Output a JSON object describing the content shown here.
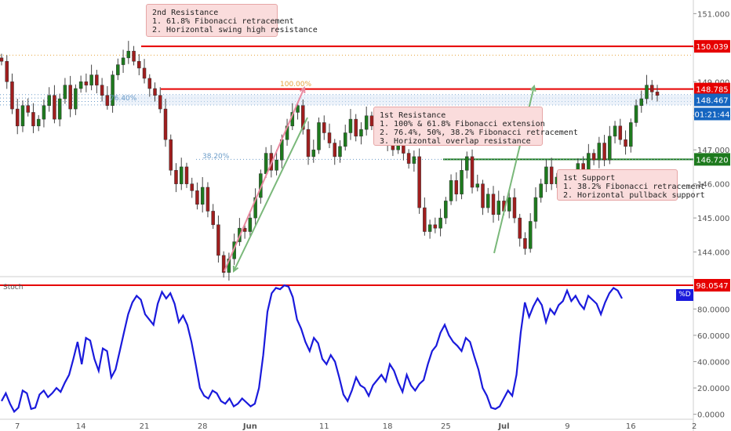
{
  "colors": {
    "resistance": "#e60000",
    "support": "#1e7a1e",
    "candle_up": "#1e7a1e",
    "candle_down": "#a01e1e",
    "stoch_line": "#1a1adc",
    "fib_line": "#6a9bc8",
    "orange_line": "#e6a23c",
    "axis_badge_blue": "#1565c0",
    "callout_bg": "#fadcdc"
  },
  "annotations": {
    "second_resistance": "2nd Resistance\n1. 61.8% Fibonacci retracement\n2. Horizontal swing high resistance",
    "first_resistance": "1st Resistance\n1. 100% & 61.8% Fibonacci extension\n2. 76.4%, 50%, 38.2% Fibonacci retracement\n3. Horizontal overlap resistance",
    "first_support": "1st Support\n1. 38.2% Fibonacci retracement\n2. Horizontal pullback support"
  },
  "fib_labels": {
    "f100": "100.00%",
    "f764": "76.40%",
    "f382": "38.20%"
  },
  "stoch_label": "Stoch",
  "stoch_series_label": "%D",
  "chart_data": [
    {
      "type": "candlestick",
      "title": "",
      "ylim": [
        143.3,
        151.4
      ],
      "price_ticks": [
        "151.000",
        "150.000",
        "149.000",
        "148.000",
        "147.000",
        "146.000",
        "145.000",
        "144.000"
      ],
      "date_ticks": [
        {
          "label": "7",
          "i": 3
        },
        {
          "label": "14",
          "i": 15
        },
        {
          "label": "21",
          "i": 27
        },
        {
          "label": "28",
          "i": 38
        },
        {
          "label": "Jun",
          "i": 47
        },
        {
          "label": "11",
          "i": 61
        },
        {
          "label": "18",
          "i": 73
        },
        {
          "label": "25",
          "i": 84
        },
        {
          "label": "Jul",
          "i": 95
        },
        {
          "label": "9",
          "i": 107
        },
        {
          "label": "16",
          "i": 119
        },
        {
          "label": "2",
          "i": 131
        }
      ],
      "levels": [
        {
          "name": "2nd Resistance",
          "value": 150.039,
          "label": "150.039",
          "style": "resistance"
        },
        {
          "name": "1st Resistance",
          "value": 148.785,
          "label": "148.785",
          "style": "resistance"
        },
        {
          "name": "1st Support",
          "value": 146.72,
          "label": "146.720",
          "style": "support"
        }
      ],
      "axis_badges": [
        {
          "value": 148.467,
          "label": "148.467"
        },
        {
          "label": "01:21:44"
        }
      ],
      "close": [
        149.6,
        149.0,
        148.2,
        147.7,
        148.3,
        148.1,
        147.7,
        147.9,
        148.3,
        148.6,
        147.9,
        148.5,
        148.9,
        148.2,
        148.8,
        149.0,
        148.9,
        149.2,
        148.9,
        148.6,
        148.3,
        149.2,
        149.5,
        149.7,
        149.9,
        149.6,
        149.4,
        149.1,
        148.8,
        148.6,
        148.2,
        147.3,
        146.4,
        146.0,
        146.5,
        146.0,
        145.8,
        145.4,
        145.9,
        145.2,
        144.8,
        143.9,
        143.4,
        143.8,
        144.3,
        144.7,
        144.6,
        145.0,
        145.6,
        146.3,
        146.9,
        146.4,
        146.7,
        147.3,
        147.7,
        148.1,
        148.3,
        147.6,
        146.8,
        147.0,
        147.8,
        147.5,
        147.2,
        146.8,
        147.1,
        147.5,
        147.9,
        147.4,
        147.6,
        148.0,
        147.7,
        147.4,
        147.7,
        147.2,
        147.0,
        147.3,
        146.9,
        146.6,
        146.8,
        145.3,
        144.6,
        144.8,
        144.7,
        145.0,
        145.5,
        146.1,
        145.7,
        146.4,
        146.8,
        145.9,
        146.0,
        145.3,
        145.7,
        145.1,
        145.5,
        145.2,
        145.6,
        145.0,
        144.4,
        144.1,
        144.9,
        145.6,
        146.0,
        146.5,
        146.0,
        146.2,
        145.8,
        146.1,
        146.0,
        146.6,
        146.3,
        146.9,
        146.7,
        147.2,
        146.7,
        147.4,
        147.7,
        147.3,
        147.1,
        147.8,
        148.3,
        148.5,
        148.9,
        148.7,
        148.6
      ],
      "stoch": [
        10,
        16,
        8,
        2,
        5,
        18,
        16,
        4,
        5,
        15,
        18,
        13,
        16,
        20,
        17,
        24,
        30,
        42,
        55,
        38,
        58,
        56,
        42,
        33,
        50,
        48,
        28,
        34,
        48,
        62,
        76,
        85,
        90,
        87,
        76,
        72,
        68,
        84,
        93,
        88,
        92,
        84,
        70,
        75,
        68,
        55,
        38,
        20,
        14,
        12,
        18,
        16,
        10,
        8,
        12,
        6,
        8,
        12,
        9,
        6,
        8,
        20,
        45,
        78,
        92,
        96,
        95,
        98,
        97,
        89,
        72,
        65,
        55,
        48,
        58,
        54,
        42,
        38,
        45,
        40,
        28,
        15,
        10,
        18,
        28,
        22,
        20,
        14,
        22,
        26,
        30,
        25,
        38,
        33,
        24,
        17,
        30,
        22,
        18,
        23,
        26,
        38,
        48,
        52,
        62,
        68,
        60,
        55,
        52,
        48,
        58,
        55,
        44,
        34,
        20,
        14,
        5,
        4,
        6,
        12,
        18,
        14,
        30,
        62,
        85,
        74,
        82,
        88,
        83,
        70,
        80,
        76,
        83,
        86,
        94,
        86,
        90,
        84,
        80,
        90,
        87,
        84,
        76,
        85,
        92,
        96,
        94,
        88
      ],
      "stoch_ylim": [
        -2,
        104
      ],
      "stoch_ticks": [
        "0.0000",
        "20.0000",
        "40.0000",
        "60.0000",
        "80.0000"
      ],
      "stoch_levels": [
        {
          "value": 98.0547,
          "label": "98.0547"
        }
      ]
    }
  ]
}
